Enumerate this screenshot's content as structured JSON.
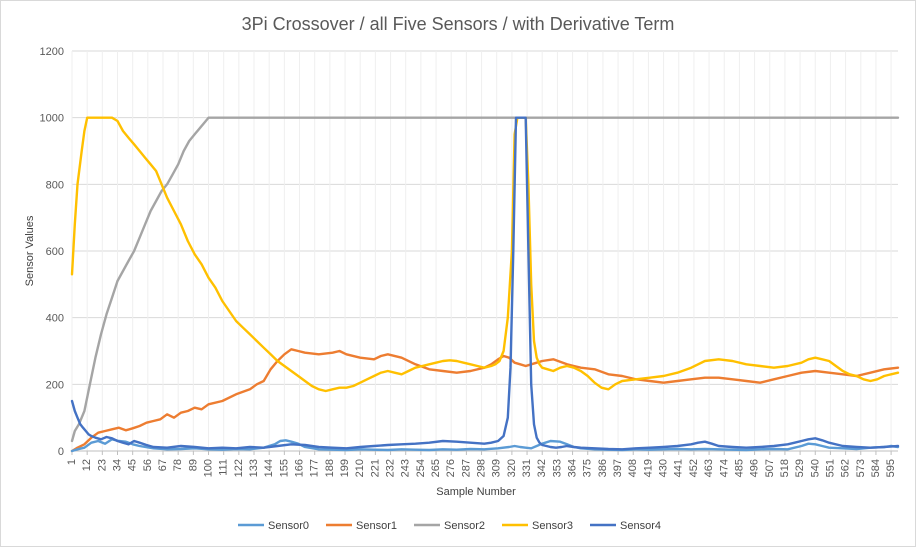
{
  "chart_data": {
    "type": "line",
    "title": "3Pi Crossover / all Five Sensors / with Derivative Term",
    "xlabel": "Sample Number",
    "ylabel": "Sensor Values",
    "ylim": [
      0,
      1200
    ],
    "y_ticks": [
      0,
      200,
      400,
      600,
      800,
      1000,
      1200
    ],
    "xlim": [
      1,
      600
    ],
    "x_tick_labels": [
      1,
      12,
      23,
      34,
      45,
      56,
      67,
      78,
      89,
      100,
      111,
      122,
      133,
      144,
      155,
      166,
      177,
      188,
      199,
      210,
      221,
      232,
      243,
      254,
      265,
      276,
      287,
      298,
      309,
      320,
      331,
      342,
      353,
      364,
      375,
      386,
      397,
      408,
      419,
      430,
      441,
      452,
      463,
      474,
      485,
      496,
      507,
      518,
      529,
      540,
      551,
      562,
      573,
      584,
      595
    ],
    "grid": true,
    "legend": "bottom",
    "series": [
      {
        "name": "Sensor0",
        "color": "#5B9BD5",
        "x": [
          1,
          5,
          10,
          15,
          20,
          25,
          30,
          35,
          40,
          45,
          50,
          60,
          70,
          80,
          90,
          100,
          110,
          120,
          130,
          140,
          148,
          152,
          156,
          160,
          165,
          170,
          180,
          190,
          200,
          210,
          220,
          230,
          240,
          250,
          260,
          270,
          280,
          290,
          300,
          310,
          318,
          322,
          326,
          330,
          334,
          338,
          342,
          348,
          355,
          360,
          365,
          370,
          380,
          390,
          400,
          410,
          420,
          430,
          440,
          450,
          460,
          470,
          480,
          490,
          500,
          510,
          520,
          530,
          535,
          540,
          545,
          550,
          560,
          570,
          580,
          590,
          595,
          600
        ],
        "values": [
          0,
          5,
          10,
          25,
          30,
          22,
          35,
          30,
          28,
          20,
          15,
          8,
          5,
          6,
          8,
          5,
          4,
          6,
          5,
          10,
          20,
          30,
          32,
          28,
          22,
          12,
          5,
          4,
          3,
          5,
          4,
          3,
          5,
          4,
          3,
          5,
          4,
          6,
          5,
          8,
          12,
          15,
          12,
          10,
          8,
          15,
          22,
          30,
          28,
          20,
          12,
          8,
          5,
          4,
          3,
          5,
          4,
          5,
          6,
          5,
          6,
          5,
          4,
          3,
          5,
          6,
          5,
          15,
          22,
          20,
          15,
          10,
          8,
          6,
          10,
          12,
          15,
          12
        ]
      },
      {
        "name": "Sensor1",
        "color": "#ED7D31",
        "x": [
          1,
          5,
          10,
          15,
          20,
          25,
          30,
          35,
          40,
          45,
          50,
          55,
          60,
          65,
          70,
          75,
          80,
          85,
          90,
          95,
          100,
          110,
          120,
          130,
          135,
          140,
          145,
          150,
          155,
          160,
          165,
          170,
          180,
          190,
          195,
          200,
          210,
          220,
          225,
          230,
          240,
          250,
          260,
          270,
          280,
          290,
          300,
          305,
          310,
          314,
          318,
          322,
          326,
          330,
          334,
          338,
          342,
          350,
          360,
          365,
          370,
          380,
          390,
          400,
          410,
          420,
          430,
          440,
          450,
          460,
          470,
          480,
          490,
          500,
          510,
          520,
          530,
          540,
          550,
          560,
          570,
          580,
          590,
          600
        ],
        "values": [
          0,
          10,
          20,
          40,
          55,
          60,
          65,
          70,
          62,
          68,
          75,
          85,
          90,
          95,
          110,
          100,
          115,
          120,
          130,
          125,
          140,
          150,
          170,
          185,
          200,
          210,
          245,
          270,
          290,
          305,
          300,
          295,
          290,
          295,
          300,
          290,
          280,
          275,
          285,
          290,
          280,
          260,
          245,
          240,
          235,
          240,
          250,
          260,
          275,
          285,
          280,
          265,
          260,
          255,
          260,
          265,
          270,
          275,
          260,
          255,
          250,
          245,
          230,
          225,
          215,
          210,
          205,
          210,
          215,
          220,
          220,
          215,
          210,
          205,
          215,
          225,
          235,
          240,
          235,
          230,
          225,
          235,
          245,
          250
        ]
      },
      {
        "name": "Sensor2",
        "color": "#A5A5A5",
        "x": [
          1,
          3,
          6,
          10,
          14,
          18,
          22,
          26,
          30,
          34,
          38,
          42,
          46,
          50,
          54,
          58,
          62,
          66,
          70,
          74,
          78,
          82,
          86,
          90,
          94,
          98,
          100,
          110,
          200,
          300,
          400,
          500,
          600
        ],
        "values": [
          30,
          60,
          80,
          120,
          200,
          280,
          350,
          410,
          460,
          510,
          540,
          570,
          600,
          640,
          680,
          720,
          750,
          780,
          800,
          830,
          860,
          900,
          930,
          950,
          970,
          990,
          1000,
          1000,
          1000,
          1000,
          1000,
          1000,
          1000
        ]
      },
      {
        "name": "Sensor3",
        "color": "#FFC000",
        "x": [
          1,
          3,
          5,
          8,
          10,
          12,
          15,
          18,
          22,
          26,
          30,
          34,
          38,
          42,
          46,
          50,
          54,
          58,
          62,
          66,
          70,
          75,
          80,
          85,
          90,
          95,
          100,
          105,
          110,
          115,
          120,
          125,
          130,
          135,
          140,
          145,
          150,
          155,
          160,
          165,
          170,
          175,
          180,
          185,
          190,
          195,
          200,
          205,
          210,
          215,
          220,
          225,
          230,
          235,
          240,
          245,
          250,
          255,
          260,
          265,
          270,
          275,
          280,
          285,
          290,
          295,
          300,
          305,
          308,
          311,
          314,
          317,
          320,
          322,
          324,
          326,
          328,
          330,
          332,
          334,
          336,
          338,
          340,
          342,
          346,
          350,
          355,
          360,
          365,
          370,
          375,
          380,
          385,
          390,
          395,
          400,
          410,
          420,
          430,
          440,
          450,
          460,
          470,
          480,
          490,
          500,
          510,
          520,
          530,
          535,
          540,
          545,
          550,
          555,
          560,
          565,
          570,
          575,
          580,
          585,
          590,
          595,
          600
        ],
        "values": [
          530,
          680,
          800,
          900,
          960,
          1000,
          1000,
          1000,
          1000,
          1000,
          1000,
          990,
          960,
          940,
          920,
          900,
          880,
          860,
          840,
          800,
          760,
          720,
          680,
          630,
          590,
          560,
          520,
          490,
          450,
          420,
          390,
          370,
          350,
          330,
          310,
          290,
          270,
          255,
          240,
          225,
          210,
          195,
          185,
          180,
          185,
          190,
          190,
          195,
          205,
          215,
          225,
          235,
          240,
          235,
          230,
          240,
          250,
          255,
          260,
          265,
          270,
          272,
          270,
          265,
          260,
          255,
          250,
          255,
          260,
          270,
          300,
          400,
          600,
          950,
          1000,
          1000,
          1000,
          1000,
          800,
          500,
          330,
          280,
          260,
          250,
          245,
          240,
          250,
          255,
          250,
          240,
          225,
          205,
          190,
          185,
          200,
          210,
          215,
          220,
          225,
          235,
          250,
          270,
          275,
          270,
          260,
          255,
          250,
          255,
          265,
          275,
          280,
          275,
          270,
          255,
          240,
          230,
          225,
          215,
          210,
          215,
          225,
          230,
          235
        ]
      },
      {
        "name": "Sensor4",
        "color": "#4472C4",
        "x": [
          1,
          3,
          5,
          7,
          9,
          11,
          13,
          15,
          18,
          22,
          26,
          30,
          34,
          38,
          42,
          46,
          50,
          55,
          60,
          70,
          80,
          90,
          100,
          110,
          120,
          130,
          140,
          150,
          160,
          170,
          180,
          190,
          200,
          210,
          220,
          230,
          240,
          250,
          260,
          270,
          280,
          290,
          300,
          305,
          310,
          314,
          317,
          319,
          321,
          323,
          325,
          326,
          328,
          330,
          332,
          334,
          336,
          338,
          340,
          342,
          345,
          348,
          352,
          356,
          360,
          365,
          370,
          380,
          390,
          400,
          410,
          420,
          430,
          440,
          450,
          455,
          460,
          465,
          470,
          480,
          490,
          500,
          510,
          520,
          525,
          530,
          535,
          540,
          545,
          550,
          560,
          570,
          580,
          590,
          600
        ],
        "values": [
          150,
          120,
          100,
          80,
          70,
          60,
          50,
          45,
          40,
          35,
          42,
          38,
          30,
          25,
          20,
          30,
          25,
          18,
          12,
          10,
          15,
          12,
          8,
          10,
          8,
          12,
          10,
          15,
          20,
          18,
          12,
          10,
          8,
          12,
          15,
          18,
          20,
          22,
          25,
          30,
          28,
          25,
          22,
          25,
          30,
          45,
          100,
          250,
          600,
          1000,
          1000,
          1000,
          1000,
          1000,
          600,
          200,
          80,
          40,
          25,
          18,
          15,
          12,
          10,
          12,
          15,
          12,
          10,
          8,
          6,
          5,
          8,
          10,
          12,
          15,
          20,
          25,
          28,
          22,
          15,
          12,
          10,
          12,
          15,
          20,
          25,
          30,
          35,
          38,
          32,
          25,
          15,
          12,
          10,
          12,
          15
        ]
      }
    ]
  }
}
